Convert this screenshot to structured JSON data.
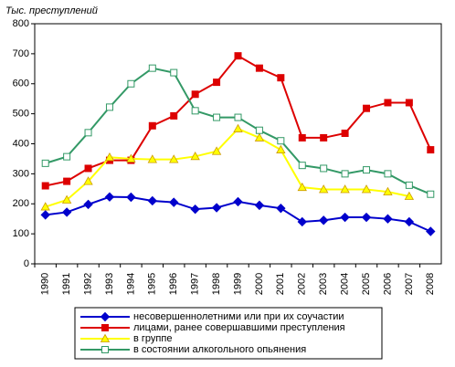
{
  "chart_data": {
    "type": "line",
    "y_label": "Тыс.  преступлений",
    "categories": [
      "1990",
      "1991",
      "1992",
      "1993",
      "1994",
      "1995",
      "1996",
      "1997",
      "1998",
      "1999",
      "2000",
      "2001",
      "2002",
      "2003",
      "2004",
      "2005",
      "2006",
      "2007",
      "2008"
    ],
    "series": [
      {
        "name": "несовершеннолетними или при их соучастии",
        "color": "#0000cc",
        "marker": "diamond",
        "values": [
          163,
          172,
          198,
          223,
          222,
          210,
          205,
          182,
          187,
          207,
          195,
          185,
          140,
          145,
          155,
          155,
          150,
          140,
          108
        ]
      },
      {
        "name": "лицами, ранее совершавшими преступления",
        "color": "#dd0000",
        "marker": "square",
        "values": [
          260,
          275,
          318,
          345,
          345,
          460,
          493,
          565,
          605,
          693,
          652,
          620,
          420,
          420,
          435,
          518,
          537,
          537,
          380
        ]
      },
      {
        "name": "в группе",
        "color": "#ffff00",
        "marker": "triangle",
        "values": [
          190,
          213,
          275,
          355,
          350,
          348,
          348,
          358,
          375,
          450,
          420,
          380,
          255,
          248,
          248,
          248,
          240,
          225,
          null
        ]
      },
      {
        "name": "в состоянии алкогольного опьянения",
        "color": "#339966",
        "marker": "open-square",
        "values": [
          335,
          357,
          437,
          522,
          600,
          652,
          637,
          510,
          488,
          488,
          445,
          410,
          328,
          318,
          300,
          313,
          300,
          262,
          232
        ]
      }
    ],
    "ylim": [
      0,
      800
    ],
    "yticks": [
      0,
      100,
      200,
      300,
      400,
      500,
      600,
      700,
      800
    ],
    "grid": false
  }
}
